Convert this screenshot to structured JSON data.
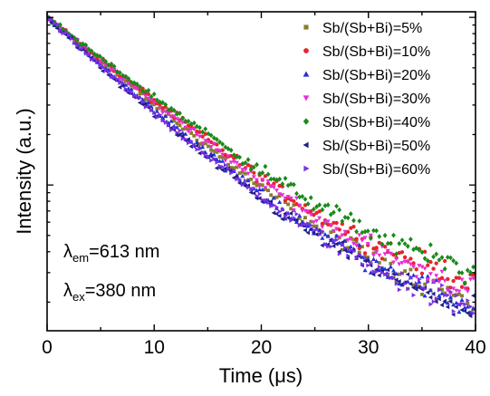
{
  "chart_data": {
    "type": "scatter",
    "xlabel": "Time (μs)",
    "ylabel": "Intensity (a.u.)",
    "xlim": [
      0,
      40
    ],
    "xticks": [
      "0",
      "10",
      "20",
      "30",
      "40"
    ],
    "y_scale": "log",
    "y_tick_labels_shown": false,
    "legend_position": "top-right",
    "annotations": [
      {
        "symbol": "λ",
        "sub": "em",
        "text": "=613 nm"
      },
      {
        "symbol": "λ",
        "sub": "ex",
        "text": "=380 nm"
      }
    ],
    "series": [
      {
        "name": "Sb/(Sb+Bi)=5%",
        "color": "#8b7d2a",
        "marker": "square",
        "x": [
          0,
          5,
          10,
          15,
          20,
          25,
          30,
          35,
          40
        ],
        "y": [
          1,
          0.55,
          0.3,
          0.17,
          0.095,
          0.057,
          0.038,
          0.026,
          0.019
        ]
      },
      {
        "name": "Sb/(Sb+Bi)=10%",
        "color": "#e8232a",
        "marker": "circle",
        "x": [
          0,
          5,
          10,
          15,
          20,
          25,
          30,
          35,
          40
        ],
        "y": [
          1,
          0.56,
          0.32,
          0.185,
          0.11,
          0.068,
          0.046,
          0.034,
          0.026
        ]
      },
      {
        "name": "Sb/(Sb+Bi)=20%",
        "color": "#2432d6",
        "marker": "triangle-up",
        "x": [
          0,
          5,
          10,
          15,
          20,
          25,
          30,
          35,
          40
        ],
        "y": [
          1,
          0.52,
          0.28,
          0.155,
          0.088,
          0.054,
          0.036,
          0.025,
          0.018
        ]
      },
      {
        "name": "Sb/(Sb+Bi)=30%",
        "color": "#e62fd8",
        "marker": "triangle-down",
        "x": [
          0,
          5,
          10,
          15,
          20,
          25,
          30,
          35,
          40
        ],
        "y": [
          1,
          0.55,
          0.31,
          0.18,
          0.105,
          0.064,
          0.043,
          0.031,
          0.023
        ]
      },
      {
        "name": "Sb/(Sb+Bi)=40%",
        "color": "#1a8a1a",
        "marker": "diamond",
        "x": [
          0,
          5,
          10,
          15,
          20,
          25,
          30,
          35,
          40
        ],
        "y": [
          1,
          0.57,
          0.335,
          0.2,
          0.122,
          0.078,
          0.053,
          0.039,
          0.03
        ]
      },
      {
        "name": "Sb/(Sb+Bi)=50%",
        "color": "#1f1f8a",
        "marker": "triangle-left",
        "x": [
          0,
          5,
          10,
          15,
          20,
          25,
          30,
          35,
          40
        ],
        "y": [
          1,
          0.5,
          0.265,
          0.145,
          0.082,
          0.05,
          0.033,
          0.023,
          0.017
        ]
      },
      {
        "name": "Sb/(Sb+Bi)=60%",
        "color": "#7b2fe6",
        "marker": "triangle-right",
        "x": [
          0,
          5,
          10,
          15,
          20,
          25,
          30,
          35,
          40
        ],
        "y": [
          1,
          0.51,
          0.27,
          0.15,
          0.085,
          0.052,
          0.034,
          0.024,
          0.018
        ]
      }
    ]
  }
}
